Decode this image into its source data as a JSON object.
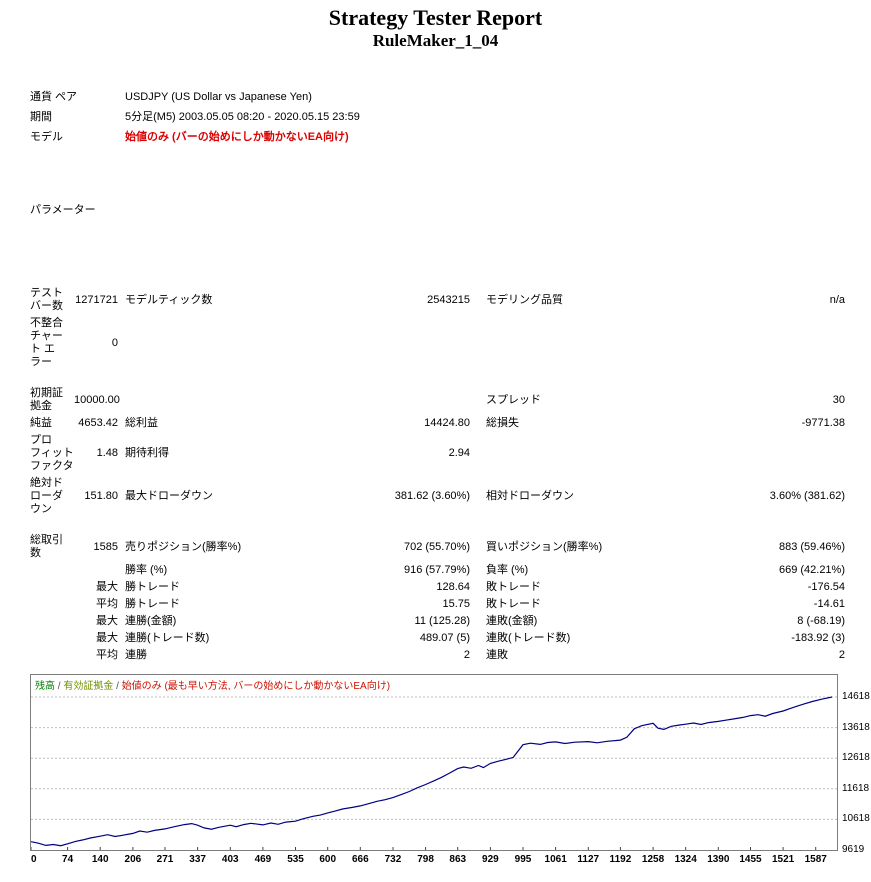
{
  "header": {
    "title": "Strategy Tester Report",
    "subtitle": "RuleMaker_1_04"
  },
  "info": {
    "currency_label": "通貨 ペア",
    "currency_value": "USDJPY (US Dollar vs Japanese Yen)",
    "period_label": "期間",
    "period_value": "5分足(M5) 2003.05.05 08:20 - 2020.05.15 23:59",
    "model_label": "モデル",
    "model_value": "始値のみ (バーの始めにしか動かないEA向け)",
    "parameters_label": "パラメーター"
  },
  "stats": {
    "rows": [
      {
        "gap": false,
        "cells": [
          "テスト\nバー数",
          "1271721",
          "モデルティック数",
          "2543215",
          "モデリング品質",
          "n/a"
        ]
      },
      {
        "gap": false,
        "cells": [
          "不整合\nチャー\nト エ\nラー",
          "0",
          "",
          "",
          "",
          ""
        ]
      },
      {
        "gap": true,
        "cells": [
          "初期証\n拠金",
          "10000.00",
          "",
          "",
          "スプレッド",
          "30"
        ]
      },
      {
        "gap": false,
        "cells": [
          "純益",
          "4653.42",
          "総利益",
          "14424.80",
          "総損失",
          "-9771.38"
        ]
      },
      {
        "gap": false,
        "cells": [
          "プロ\nフィット\nファクタ",
          "1.48",
          "期待利得",
          "2.94",
          "",
          ""
        ]
      },
      {
        "gap": false,
        "cells": [
          "絶対ド\nローダ\nウン",
          "151.80",
          "最大ドローダウン",
          "381.62 (3.60%)",
          "相対ドローダウン",
          "3.60% (381.62)"
        ]
      },
      {
        "gap": true,
        "cells": [
          "総取引\n数",
          "1585",
          "売りポジション(勝率%)",
          "702 (55.70%)",
          "買いポジション(勝率%)",
          "883 (59.46%)"
        ]
      },
      {
        "gap": false,
        "cells": [
          "",
          "",
          "勝率 (%)",
          "916 (57.79%)",
          "負率 (%)",
          "669 (42.21%)"
        ]
      },
      {
        "gap": false,
        "cells": [
          "",
          "最大",
          "勝トレード",
          "128.64",
          "敗トレード",
          "-176.54"
        ]
      },
      {
        "gap": false,
        "cells": [
          "",
          "平均",
          "勝トレード",
          "15.75",
          "敗トレード",
          "-14.61"
        ]
      },
      {
        "gap": false,
        "cells": [
          "",
          "最大",
          "連勝(金額)",
          "11 (125.28)",
          "連敗(金額)",
          "8 (-68.19)"
        ]
      },
      {
        "gap": false,
        "cells": [
          "",
          "最大",
          "連勝(トレード数)",
          "489.07 (5)",
          "連敗(トレード数)",
          "-183.92 (3)"
        ]
      },
      {
        "gap": false,
        "cells": [
          "",
          "平均",
          "連勝",
          "2",
          "連敗",
          "2"
        ]
      }
    ]
  },
  "chart_data": {
    "type": "line",
    "title": "残高 / 有効証拠金 / 始値のみ (最も早い方法, バーの始めにしか動かないEA向け)",
    "legend_separator": " / ",
    "legend": [
      {
        "label": "残高",
        "color": "#007f00"
      },
      {
        "label": "有効証拠金",
        "color": "#6f8f00"
      },
      {
        "label": "始値のみ (最も早い方法, バーの始めにしか動かないEA向け)",
        "color": "#cc1100"
      }
    ],
    "line_color": "#000080",
    "xlabel": "",
    "ylabel": "",
    "x_range": [
      0,
      1630
    ],
    "y_range": [
      9619,
      14930
    ],
    "x_ticks": [
      0,
      74,
      140,
      206,
      271,
      337,
      403,
      469,
      535,
      600,
      666,
      732,
      798,
      863,
      929,
      995,
      1061,
      1127,
      1192,
      1258,
      1324,
      1390,
      1455,
      1521,
      1587
    ],
    "y_ticks": [
      9619,
      10618,
      11618,
      12618,
      13618,
      14618
    ],
    "series": [
      {
        "name": "残高",
        "points": [
          [
            0,
            9890
          ],
          [
            15,
            9840
          ],
          [
            30,
            9770
          ],
          [
            45,
            9800
          ],
          [
            60,
            9760
          ],
          [
            74,
            9820
          ],
          [
            90,
            9900
          ],
          [
            105,
            9950
          ],
          [
            120,
            10010
          ],
          [
            140,
            10070
          ],
          [
            155,
            10120
          ],
          [
            170,
            10060
          ],
          [
            185,
            10100
          ],
          [
            206,
            10160
          ],
          [
            220,
            10240
          ],
          [
            235,
            10200
          ],
          [
            250,
            10260
          ],
          [
            271,
            10310
          ],
          [
            290,
            10380
          ],
          [
            310,
            10450
          ],
          [
            325,
            10480
          ],
          [
            337,
            10430
          ],
          [
            350,
            10340
          ],
          [
            365,
            10300
          ],
          [
            380,
            10360
          ],
          [
            403,
            10430
          ],
          [
            415,
            10380
          ],
          [
            430,
            10450
          ],
          [
            445,
            10490
          ],
          [
            469,
            10440
          ],
          [
            485,
            10500
          ],
          [
            500,
            10460
          ],
          [
            515,
            10530
          ],
          [
            535,
            10560
          ],
          [
            550,
            10640
          ],
          [
            570,
            10720
          ],
          [
            585,
            10760
          ],
          [
            600,
            10830
          ],
          [
            615,
            10890
          ],
          [
            630,
            10960
          ],
          [
            650,
            11010
          ],
          [
            666,
            11060
          ],
          [
            680,
            11120
          ],
          [
            700,
            11210
          ],
          [
            715,
            11260
          ],
          [
            732,
            11330
          ],
          [
            750,
            11440
          ],
          [
            765,
            11530
          ],
          [
            780,
            11640
          ],
          [
            798,
            11760
          ],
          [
            815,
            11880
          ],
          [
            830,
            11990
          ],
          [
            845,
            12120
          ],
          [
            863,
            12280
          ],
          [
            875,
            12330
          ],
          [
            890,
            12290
          ],
          [
            905,
            12380
          ],
          [
            915,
            12310
          ],
          [
            929,
            12450
          ],
          [
            945,
            12520
          ],
          [
            960,
            12580
          ],
          [
            975,
            12640
          ],
          [
            995,
            13060
          ],
          [
            1010,
            13110
          ],
          [
            1030,
            13070
          ],
          [
            1045,
            13130
          ],
          [
            1061,
            13150
          ],
          [
            1080,
            13100
          ],
          [
            1100,
            13140
          ],
          [
            1127,
            13160
          ],
          [
            1145,
            13120
          ],
          [
            1165,
            13170
          ],
          [
            1192,
            13210
          ],
          [
            1205,
            13300
          ],
          [
            1220,
            13580
          ],
          [
            1235,
            13680
          ],
          [
            1258,
            13760
          ],
          [
            1268,
            13600
          ],
          [
            1280,
            13560
          ],
          [
            1295,
            13660
          ],
          [
            1310,
            13700
          ],
          [
            1324,
            13730
          ],
          [
            1340,
            13770
          ],
          [
            1355,
            13720
          ],
          [
            1370,
            13780
          ],
          [
            1390,
            13820
          ],
          [
            1405,
            13860
          ],
          [
            1420,
            13900
          ],
          [
            1440,
            13950
          ],
          [
            1455,
            14010
          ],
          [
            1470,
            14040
          ],
          [
            1485,
            13990
          ],
          [
            1500,
            14080
          ],
          [
            1521,
            14160
          ],
          [
            1535,
            14240
          ],
          [
            1550,
            14320
          ],
          [
            1565,
            14400
          ],
          [
            1580,
            14470
          ],
          [
            1600,
            14550
          ],
          [
            1620,
            14618
          ]
        ]
      }
    ]
  }
}
